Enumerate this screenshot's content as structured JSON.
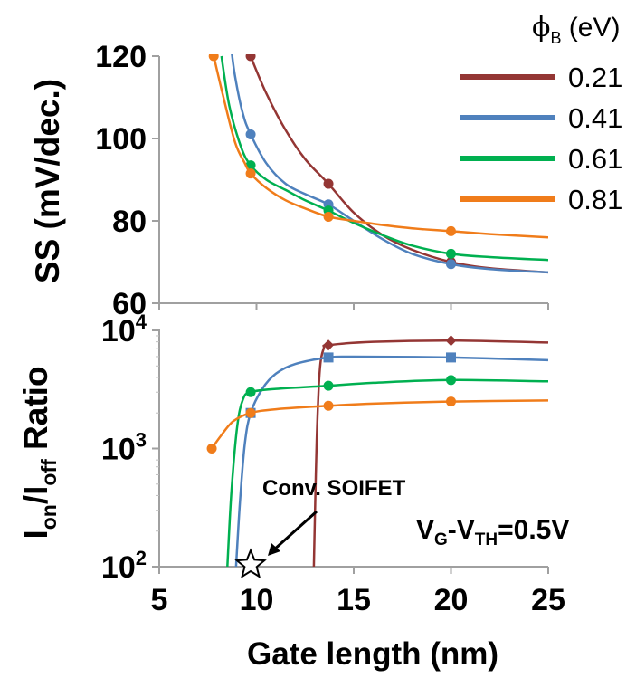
{
  "chart_data": [
    {
      "type": "line",
      "panel": "top",
      "ylabel": "SS (mV/dec.)",
      "ylim": [
        60,
        120
      ],
      "yticks": [
        "60",
        "80",
        "100",
        "120"
      ],
      "xlim": [
        5,
        25
      ],
      "grid": false,
      "legend": {
        "title": "ϕ",
        "title_sub": "B",
        "title_unit": " (eV)",
        "placement": "top-right"
      },
      "series": [
        {
          "name": "0.21",
          "color": "#943634",
          "markers": [
            [
              9.7,
              120
            ],
            [
              13.7,
              89
            ],
            [
              20,
              70
            ]
          ],
          "curve": [
            [
              9.6,
              122
            ],
            [
              9.7,
              120
            ],
            [
              10.5,
              111
            ],
            [
              11.5,
              102
            ],
            [
              12.5,
              95
            ],
            [
              13.7,
              89
            ],
            [
              15,
              82
            ],
            [
              16.5,
              76.5
            ],
            [
              18,
              73
            ],
            [
              20,
              70
            ],
            [
              22,
              68.5
            ],
            [
              25,
              67.5
            ]
          ]
        },
        {
          "name": "0.41",
          "color": "#4f81bd",
          "markers": [
            [
              9.7,
              101
            ],
            [
              13.7,
              84
            ],
            [
              20,
              69.5
            ]
          ],
          "curve": [
            [
              8.7,
              122
            ],
            [
              8.9,
              115
            ],
            [
              9.3,
              106
            ],
            [
              9.7,
              101
            ],
            [
              10.5,
              94
            ],
            [
              11.5,
              89
            ],
            [
              12.5,
              86.5
            ],
            [
              13.7,
              84
            ],
            [
              15,
              80
            ],
            [
              16.5,
              75.5
            ],
            [
              18,
              72
            ],
            [
              20,
              69.5
            ],
            [
              22,
              68.3
            ],
            [
              25,
              67.5
            ]
          ]
        },
        {
          "name": "0.61",
          "color": "#00b050",
          "markers": [
            [
              9.7,
              93.5
            ],
            [
              13.7,
              82.5
            ],
            [
              20,
              72
            ]
          ],
          "curve": [
            [
              8.2,
              120
            ],
            [
              8.6,
              108
            ],
            [
              9.2,
              98
            ],
            [
              9.7,
              93.5
            ],
            [
              10.5,
              90
            ],
            [
              11.5,
              87.5
            ],
            [
              12.5,
              85
            ],
            [
              13.7,
              82.5
            ],
            [
              15,
              79.5
            ],
            [
              16.5,
              76.5
            ],
            [
              18,
              74
            ],
            [
              20,
              72
            ],
            [
              22,
              71.2
            ],
            [
              25,
              70.5
            ]
          ]
        },
        {
          "name": "0.81",
          "color": "#f07c1a",
          "markers": [
            [
              7.8,
              120
            ],
            [
              9.7,
              91.5
            ],
            [
              13.7,
              81
            ],
            [
              20,
              77.5
            ]
          ],
          "curve": [
            [
              7.8,
              120
            ],
            [
              8.3,
              110
            ],
            [
              8.9,
              99
            ],
            [
              9.4,
              94
            ],
            [
              9.7,
              91.5
            ],
            [
              10.5,
              88
            ],
            [
              11.5,
              85
            ],
            [
              12.5,
              83
            ],
            [
              13.7,
              81
            ],
            [
              15,
              80
            ],
            [
              16.5,
              79
            ],
            [
              18,
              78.2
            ],
            [
              20,
              77.5
            ],
            [
              22,
              76.8
            ],
            [
              25,
              76
            ]
          ]
        }
      ]
    },
    {
      "type": "line",
      "panel": "bottom",
      "ylabel": "Ion/Ioff Ratio",
      "ylabel_parts": [
        "I",
        "on",
        "/I",
        "off",
        " Ratio"
      ],
      "yscale": "log",
      "ylim": [
        100,
        10000
      ],
      "yticks": [
        {
          "value": 100,
          "base": "10",
          "exp": "2"
        },
        {
          "value": 1000,
          "base": "10",
          "exp": "3"
        },
        {
          "value": 10000,
          "base": "10",
          "exp": "4"
        }
      ],
      "xlabel": "Gate length (nm)",
      "xlim": [
        5,
        25
      ],
      "xticks": [
        "5",
        "10",
        "15",
        "20",
        "25"
      ],
      "grid": false,
      "series": [
        {
          "name": "0.21",
          "color": "#943634",
          "marker": "diamond",
          "markers": [
            [
              13.7,
              7500
            ],
            [
              20,
              8200
            ]
          ],
          "curve": [
            [
              12.95,
              100
            ],
            [
              13.0,
              250
            ],
            [
              13.1,
              1200
            ],
            [
              13.25,
              4500
            ],
            [
              13.45,
              7000
            ],
            [
              13.7,
              7500
            ],
            [
              16,
              8000
            ],
            [
              20,
              8200
            ],
            [
              25,
              7900
            ]
          ]
        },
        {
          "name": "0.41",
          "color": "#4f81bd",
          "marker": "square",
          "markers": [
            [
              9.7,
              2000
            ],
            [
              13.7,
              5900
            ],
            [
              20,
              5900
            ]
          ],
          "curve": [
            [
              8.95,
              100
            ],
            [
              9.15,
              350
            ],
            [
              9.4,
              1100
            ],
            [
              9.7,
              2000
            ],
            [
              10.3,
              3200
            ],
            [
              11,
              4300
            ],
            [
              12,
              5200
            ],
            [
              13.7,
              5900
            ],
            [
              15,
              6000
            ],
            [
              20,
              5900
            ],
            [
              25,
              5600
            ]
          ]
        },
        {
          "name": "0.61",
          "color": "#00b050",
          "marker": "circle",
          "markers": [
            [
              9.7,
              3000
            ],
            [
              13.7,
              3400
            ],
            [
              20,
              3800
            ]
          ],
          "curve": [
            [
              8.5,
              100
            ],
            [
              8.7,
              400
            ],
            [
              9.0,
              1500
            ],
            [
              9.3,
              2600
            ],
            [
              9.7,
              3000
            ],
            [
              11,
              3200
            ],
            [
              13.7,
              3400
            ],
            [
              16,
              3600
            ],
            [
              20,
              3800
            ],
            [
              25,
              3700
            ]
          ]
        },
        {
          "name": "0.81",
          "color": "#f07c1a",
          "marker": "circle",
          "markers": [
            [
              7.7,
              1000
            ],
            [
              9.7,
              2000
            ],
            [
              13.7,
              2300
            ],
            [
              20,
              2500
            ]
          ],
          "curve": [
            [
              7.7,
              1000
            ],
            [
              8.2,
              1300
            ],
            [
              8.8,
              1700
            ],
            [
              9.7,
              2000
            ],
            [
              11,
              2150
            ],
            [
              13.7,
              2300
            ],
            [
              16,
              2400
            ],
            [
              20,
              2500
            ],
            [
              25,
              2550
            ]
          ]
        }
      ],
      "annotations": {
        "conv_soifet": {
          "label": "Conv. SOIFET",
          "x": 9.7,
          "y": 100
        },
        "condition": {
          "parts": [
            "V",
            "G",
            "-V",
            "TH",
            "=0.5V"
          ]
        }
      }
    }
  ]
}
